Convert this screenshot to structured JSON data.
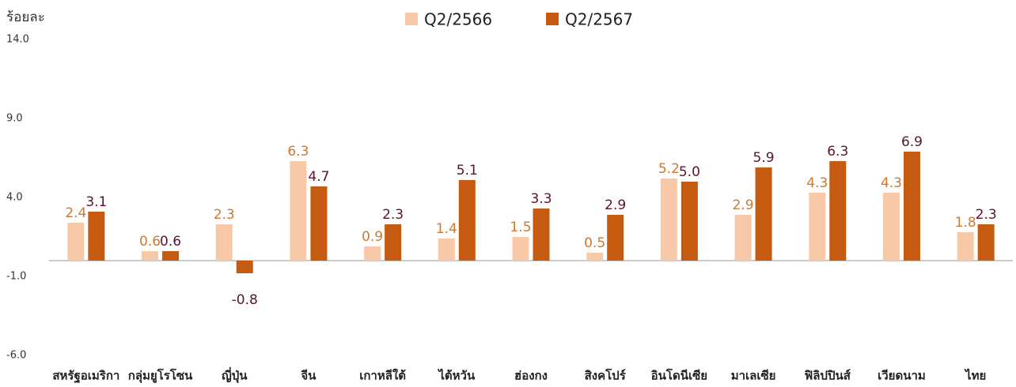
{
  "chart_data": {
    "type": "bar",
    "y_axis_label": "ร้อยละ",
    "categories": [
      "สหรัฐอเมริกา",
      "กลุ่มยูโรโซน",
      "ญี่ปุ่น",
      "จีน",
      "เกาหลีใต้",
      "ไต้หวัน",
      "ฮ่องกง",
      "สิงคโปร์",
      "อินโดนีเซีย",
      "มาเลเซีย",
      "ฟิลิปปินส์",
      "เวียดนาม",
      "ไทย"
    ],
    "series": [
      {
        "name": "Q2/2566",
        "color": "#f8c9a9",
        "label_color": "#d0782e",
        "values": [
          2.4,
          0.6,
          2.3,
          6.3,
          0.9,
          1.4,
          1.5,
          0.5,
          5.2,
          2.9,
          4.3,
          4.3,
          1.8
        ],
        "value_labels": [
          "2.4",
          "0.6",
          "2.3",
          "6.3",
          "0.9",
          "1.4",
          "1.5",
          "0.5",
          "5.2",
          "2.9",
          "4.3",
          "4.3",
          "1.8"
        ]
      },
      {
        "name": "Q2/2567",
        "color": "#c55a11",
        "label_color": "#5c1233",
        "values": [
          3.1,
          0.6,
          -0.8,
          4.7,
          2.3,
          5.1,
          3.3,
          2.9,
          5.0,
          5.9,
          6.3,
          6.9,
          2.3
        ],
        "value_labels": [
          "3.1",
          "0.6",
          "-0.8",
          "4.7",
          "2.3",
          "5.1",
          "3.3",
          "2.9",
          "5.0",
          "5.9",
          "6.3",
          "6.9",
          "2.3"
        ]
      }
    ],
    "ylim": [
      -6,
      14
    ],
    "yticks": [
      {
        "value": -6,
        "label": "-6.0"
      },
      {
        "value": -1,
        "label": "-1.0"
      },
      {
        "value": 4,
        "label": "4.0"
      },
      {
        "value": 9,
        "label": "9.0"
      },
      {
        "value": 14,
        "label": "14.0"
      }
    ],
    "grid": false,
    "legend": "top"
  }
}
